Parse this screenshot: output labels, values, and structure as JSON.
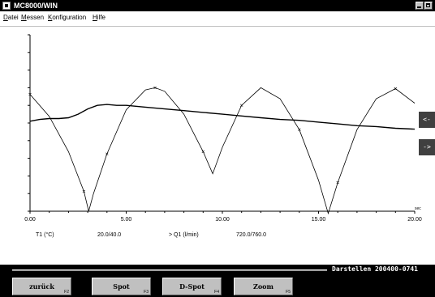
{
  "window": {
    "title": "MC8000/WIN"
  },
  "menu": [
    {
      "underline": "D",
      "rest": "atei"
    },
    {
      "underline": "M",
      "rest": "essen"
    },
    {
      "underline": "K",
      "rest": "onfiguration"
    },
    {
      "underline": "H",
      "rest": "ilfe"
    }
  ],
  "chart_data": {
    "type": "line",
    "title": "",
    "xlabel": "sec",
    "ylabel": "",
    "xlim": [
      0,
      20
    ],
    "xticks": [
      "0.00",
      "5.00",
      "10.00",
      "15.00",
      "20.00"
    ],
    "xtick_values": [
      0,
      5,
      10,
      15,
      20
    ],
    "yticks_count": 10,
    "grid": false,
    "series": [
      {
        "name": "T1 (°C)",
        "range_label": "20.0/40.0",
        "y_range": [
          20,
          40
        ],
        "color": "#000000",
        "x": [
          0,
          0.5,
          1.0,
          1.5,
          2.0,
          2.5,
          3.0,
          3.5,
          4.0,
          4.5,
          5.0,
          5.5,
          6.0,
          7.0,
          8.0,
          9.0,
          10.0,
          11.0,
          12.0,
          13.0,
          14.0,
          15.0,
          16.0,
          17.0,
          18.0,
          19.0,
          20.0
        ],
        "y": [
          30.2,
          30.4,
          30.5,
          30.5,
          30.6,
          31.0,
          31.6,
          32.0,
          32.1,
          32.0,
          32.0,
          31.9,
          31.8,
          31.6,
          31.4,
          31.2,
          31.0,
          30.8,
          30.6,
          30.4,
          30.3,
          30.1,
          29.9,
          29.7,
          29.6,
          29.4,
          29.3
        ]
      },
      {
        "name": "Q1 (l/min)",
        "range_label": "720.0/760.0",
        "y_range": [
          720,
          760
        ],
        "color": "#000000",
        "x": [
          0,
          1.0,
          2.0,
          2.8,
          3.05,
          3.3,
          4.0,
          5.0,
          6.0,
          6.5,
          7.0,
          8.0,
          9.0,
          9.5,
          10.0,
          11.0,
          12.0,
          13.0,
          14.0,
          15.0,
          15.5,
          16.0,
          17.0,
          18.0,
          19.0,
          20.0
        ],
        "y": [
          746.5,
          741.5,
          733.5,
          724.5,
          720.0,
          724.0,
          733.0,
          743.0,
          747.5,
          748.0,
          747.2,
          742.0,
          733.5,
          728.5,
          734.5,
          744.0,
          748.0,
          745.5,
          738.5,
          727.0,
          719.5,
          726.5,
          738.5,
          745.5,
          747.8,
          744.5
        ]
      }
    ]
  },
  "nav": {
    "left": "<-",
    "right": "->"
  },
  "legend": {
    "t1_name": "T1 (°C)",
    "t1_range": "20.0/40.0",
    "q1_name": "> Q1 (l/min)",
    "q1_range": "720.0/760.0"
  },
  "status": {
    "text": "Darstellen 200400-0741"
  },
  "fkeys": [
    {
      "label": "zurück",
      "key": "F2"
    },
    {
      "label": "Spot",
      "key": "F3"
    },
    {
      "label": "D-Spot",
      "key": "F4"
    },
    {
      "label": "Zoom",
      "key": "F5"
    }
  ]
}
